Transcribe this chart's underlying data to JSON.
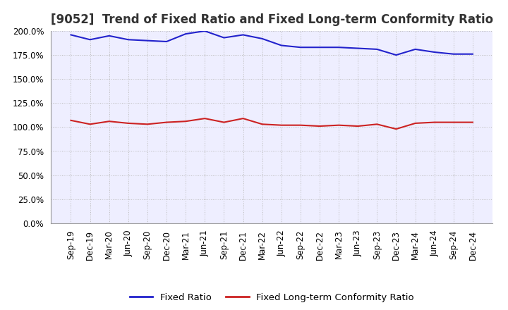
{
  "title": "[9052]  Trend of Fixed Ratio and Fixed Long-term Conformity Ratio",
  "x_labels": [
    "Sep-19",
    "Dec-19",
    "Mar-20",
    "Jun-20",
    "Sep-20",
    "Dec-20",
    "Mar-21",
    "Jun-21",
    "Sep-21",
    "Dec-21",
    "Mar-22",
    "Jun-22",
    "Sep-22",
    "Dec-22",
    "Mar-23",
    "Jun-23",
    "Sep-23",
    "Dec-23",
    "Mar-24",
    "Jun-24",
    "Sep-24",
    "Dec-24"
  ],
  "fixed_ratio": [
    196,
    191,
    195,
    191,
    190,
    189,
    197,
    200,
    193,
    196,
    192,
    185,
    183,
    183,
    183,
    182,
    181,
    175,
    181,
    178,
    176,
    176
  ],
  "fixed_lt_ratio": [
    107,
    103,
    106,
    104,
    103,
    105,
    106,
    109,
    105,
    109,
    103,
    102,
    102,
    101,
    102,
    101,
    103,
    98,
    104,
    105,
    105,
    105
  ],
  "ylim": [
    0,
    200
  ],
  "yticks": [
    0,
    25,
    50,
    75,
    100,
    125,
    150,
    175,
    200
  ],
  "line_color_fixed": "#2222CC",
  "line_color_lt": "#CC2222",
  "legend_fixed": "Fixed Ratio",
  "legend_lt": "Fixed Long-term Conformity Ratio",
  "bg_color": "#FFFFFF",
  "plot_bg_color": "#EEEEFF",
  "grid_color": "#BBBBBB",
  "title_fontsize": 12,
  "label_fontsize": 8.5,
  "legend_fontsize": 9.5
}
